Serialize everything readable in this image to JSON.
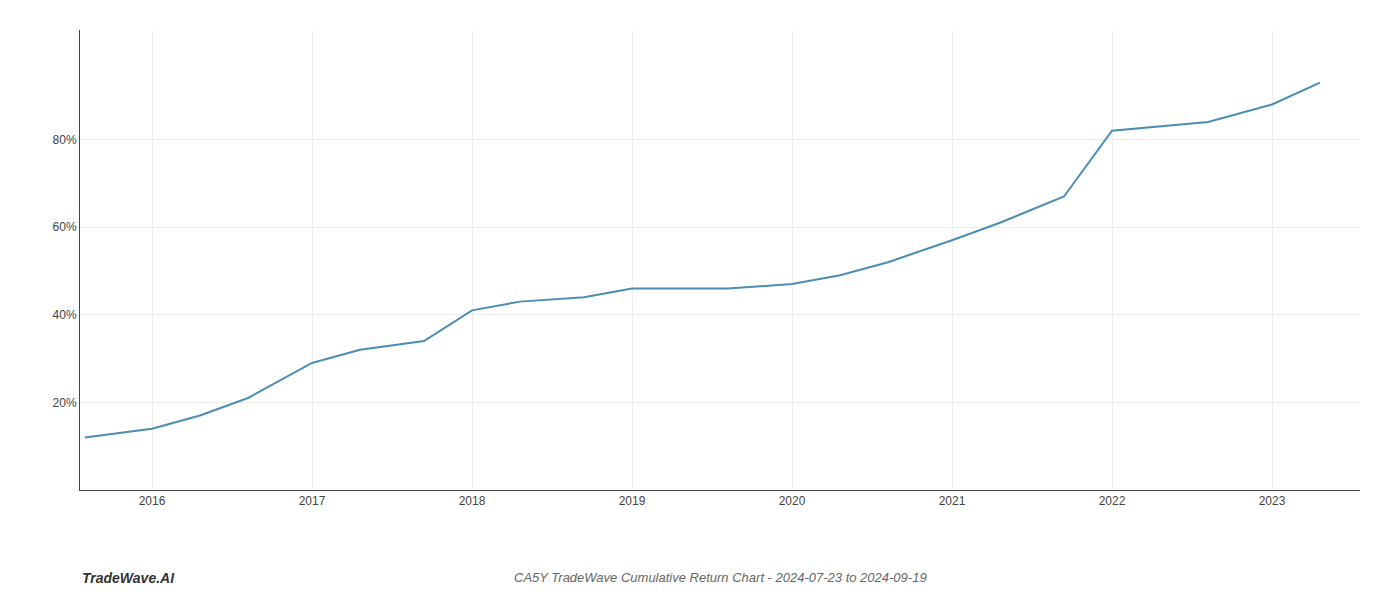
{
  "chart_data": {
    "type": "line",
    "title": "CA5Y TradeWave Cumulative Return Chart - 2024-07-23 to 2024-09-19",
    "annotations": [
      "TradeWave.AI"
    ],
    "x": [
      2015.58,
      2016.0,
      2016.3,
      2016.6,
      2017.0,
      2017.3,
      2017.7,
      2018.0,
      2018.3,
      2018.7,
      2019.0,
      2019.3,
      2019.6,
      2020.0,
      2020.3,
      2020.6,
      2021.0,
      2021.3,
      2021.7,
      2022.0,
      2022.3,
      2022.6,
      2023.0,
      2023.3
    ],
    "values": [
      12,
      14,
      17,
      21,
      29,
      32,
      34,
      41,
      43,
      44,
      46,
      46,
      46,
      47,
      49,
      52,
      57,
      61,
      67,
      82,
      83,
      84,
      88,
      93
    ],
    "color": "#4a8db5",
    "xlim": [
      2015.55,
      2023.55
    ],
    "ylim": [
      0,
      105
    ],
    "xticks": [
      2016,
      2017,
      2018,
      2019,
      2020,
      2021,
      2022,
      2023
    ],
    "yticks": [
      {
        "value": 20,
        "label": "20%"
      },
      {
        "value": 40,
        "label": "40%"
      },
      {
        "value": 60,
        "label": "60%"
      },
      {
        "value": 80,
        "label": "80%"
      }
    ],
    "grid": true
  }
}
